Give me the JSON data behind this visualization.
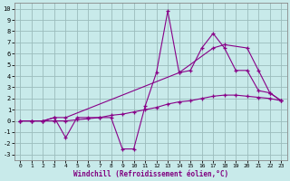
{
  "xlabel": "Windchill (Refroidissement éolien,°C)",
  "xlim": [
    -0.5,
    23.5
  ],
  "ylim": [
    -3.5,
    10.5
  ],
  "xticks": [
    0,
    1,
    2,
    3,
    4,
    5,
    6,
    7,
    8,
    9,
    10,
    11,
    12,
    13,
    14,
    15,
    16,
    17,
    18,
    19,
    20,
    21,
    22,
    23
  ],
  "yticks": [
    -3,
    -2,
    -1,
    0,
    1,
    2,
    3,
    4,
    5,
    6,
    7,
    8,
    9,
    10
  ],
  "background_color": "#c8eaea",
  "grid_color": "#9bbcbc",
  "line_color": "#880088",
  "line1_x": [
    0,
    1,
    2,
    3,
    4,
    5,
    6,
    7,
    8,
    9,
    10,
    11,
    12,
    13,
    14,
    15,
    16,
    17,
    18,
    19,
    20,
    21,
    22,
    23
  ],
  "line1_y": [
    0,
    0,
    0,
    0.3,
    -1.5,
    0.3,
    0.3,
    0.3,
    0.3,
    -2.5,
    -2.5,
    1.3,
    4.3,
    9.8,
    4.3,
    4.5,
    6.5,
    7.8,
    6.5,
    4.5,
    4.5,
    2.7,
    2.5,
    1.8
  ],
  "line2_x": [
    0,
    1,
    2,
    3,
    4,
    14,
    17,
    18,
    20,
    21,
    22,
    23
  ],
  "line2_y": [
    0,
    0,
    0,
    0.3,
    0.3,
    4.3,
    6.5,
    6.8,
    6.5,
    4.5,
    2.5,
    1.8
  ],
  "line3_x": [
    0,
    1,
    2,
    3,
    4,
    5,
    6,
    7,
    8,
    9,
    10,
    11,
    12,
    13,
    14,
    15,
    16,
    17,
    18,
    19,
    20,
    21,
    22,
    23
  ],
  "line3_y": [
    0,
    0,
    0,
    0,
    0,
    0.1,
    0.2,
    0.3,
    0.5,
    0.6,
    0.8,
    1.0,
    1.2,
    1.5,
    1.7,
    1.8,
    2.0,
    2.2,
    2.3,
    2.3,
    2.2,
    2.1,
    2.0,
    1.8
  ]
}
